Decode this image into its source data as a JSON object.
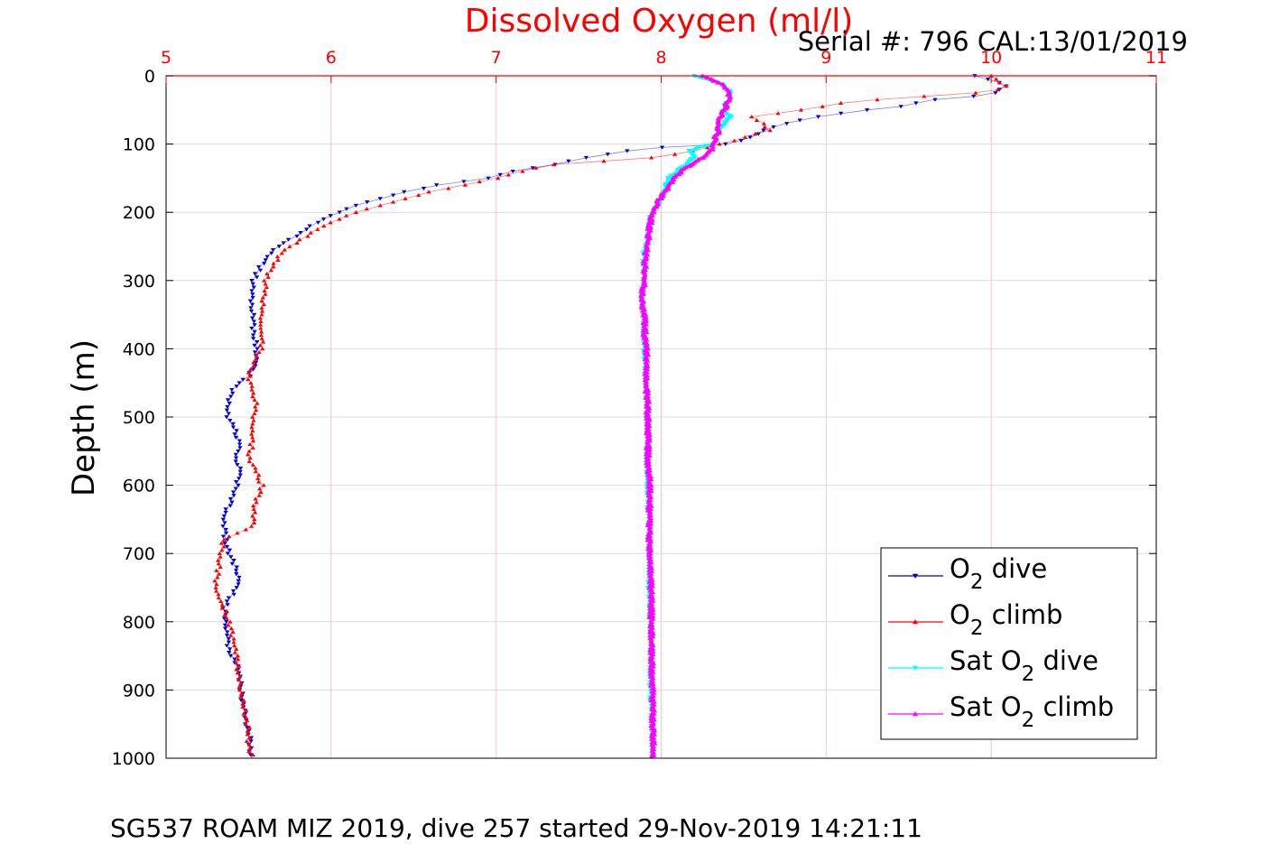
{
  "figure": {
    "footer": "SG537 ROAM MIZ 2019, dive 257 started 29-Nov-2019 14:21:11",
    "serial": "Serial #: 796  CAL:13/01/2019"
  },
  "colors": {
    "o2_dive": "#0000d0",
    "o2_climb": "#ff0000",
    "sat_dive": "#00ffff",
    "sat_climb": "#ff00ff",
    "title": "#ff0000",
    "top_ticks": "#ff0000",
    "grid": "#f5c6d3"
  },
  "chart_data": {
    "type": "line",
    "title": "Dissolved Oxygen (ml/l)",
    "xlabel": "",
    "ylabel": "Depth (m)",
    "xlim": [
      5,
      11
    ],
    "ylim": [
      0,
      1000
    ],
    "y_reversed": true,
    "x_axis_position": "top",
    "x_ticks": [
      "5",
      "6",
      "7",
      "8",
      "9",
      "10",
      "11"
    ],
    "y_ticks": [
      "0",
      "100",
      "200",
      "300",
      "400",
      "500",
      "600",
      "700",
      "800",
      "900",
      "1000"
    ],
    "grid": true,
    "legend_position": "bottom-right",
    "legend": [
      {
        "label": "O",
        "sub": "2",
        "suffix": " dive"
      },
      {
        "label": "O",
        "sub": "2",
        "suffix": " climb"
      },
      {
        "label": "Sat O",
        "sub": "2",
        "suffix": " dive"
      },
      {
        "label": "Sat O",
        "sub": "2",
        "suffix": " climb"
      }
    ],
    "series": [
      {
        "key": "o2_dive",
        "marker": "triangle-down",
        "depth": [
          0,
          10,
          15,
          20,
          25,
          30,
          35,
          45,
          50,
          60,
          70,
          80,
          90,
          100,
          105,
          110,
          120,
          130,
          140,
          150,
          160,
          170,
          180,
          190,
          200,
          210,
          220,
          230,
          240,
          250,
          260,
          270,
          280,
          290,
          300,
          320,
          340,
          360,
          380,
          400,
          420,
          440,
          460,
          480,
          500,
          520,
          540,
          560,
          580,
          600,
          620,
          640,
          660,
          680,
          700,
          720,
          740,
          760,
          780,
          800,
          820,
          840,
          860,
          880,
          900,
          920,
          940,
          960,
          980,
          1000
        ],
        "o2": [
          9.9,
          10.05,
          10.08,
          10.06,
          10.02,
          9.9,
          9.65,
          9.45,
          9.25,
          8.95,
          8.75,
          8.62,
          8.55,
          8.4,
          8.0,
          7.8,
          7.55,
          7.35,
          7.1,
          6.95,
          6.65,
          6.45,
          6.3,
          6.15,
          6.05,
          5.95,
          5.88,
          5.82,
          5.75,
          5.68,
          5.63,
          5.6,
          5.57,
          5.55,
          5.53,
          5.52,
          5.52,
          5.53,
          5.53,
          5.55,
          5.55,
          5.5,
          5.4,
          5.38,
          5.37,
          5.42,
          5.45,
          5.42,
          5.45,
          5.43,
          5.4,
          5.36,
          5.35,
          5.36,
          5.38,
          5.42,
          5.45,
          5.4,
          5.35,
          5.36,
          5.37,
          5.38,
          5.42,
          5.45,
          5.45,
          5.47,
          5.48,
          5.5,
          5.51,
          5.52
        ]
      },
      {
        "key": "o2_climb",
        "marker": "triangle-up",
        "depth": [
          0,
          10,
          15,
          20,
          25,
          30,
          35,
          40,
          50,
          55,
          60,
          70,
          80,
          90,
          95,
          100,
          110,
          120,
          130,
          140,
          150,
          160,
          170,
          180,
          190,
          200,
          210,
          220,
          230,
          240,
          250,
          260,
          270,
          280,
          290,
          300,
          320,
          340,
          360,
          380,
          400,
          420,
          440,
          460,
          480,
          500,
          520,
          540,
          560,
          580,
          600,
          620,
          640,
          660,
          680,
          700,
          720,
          740,
          760,
          780,
          800,
          820,
          840,
          860,
          880,
          900,
          920,
          940,
          960,
          980,
          1000
        ],
        "o2": [
          10.0,
          10.05,
          10.08,
          10.05,
          9.9,
          9.6,
          9.3,
          9.1,
          8.85,
          8.7,
          8.55,
          8.62,
          8.65,
          8.5,
          8.45,
          8.35,
          8.2,
          7.95,
          7.35,
          7.15,
          7.0,
          6.8,
          6.6,
          6.45,
          6.3,
          6.15,
          6.05,
          5.95,
          5.88,
          5.82,
          5.75,
          5.7,
          5.67,
          5.64,
          5.62,
          5.6,
          5.6,
          5.58,
          5.57,
          5.58,
          5.58,
          5.53,
          5.5,
          5.52,
          5.55,
          5.53,
          5.52,
          5.52,
          5.5,
          5.55,
          5.58,
          5.55,
          5.53,
          5.52,
          5.35,
          5.33,
          5.32,
          5.3,
          5.31,
          5.35,
          5.38,
          5.4,
          5.42,
          5.43,
          5.44,
          5.45,
          5.47,
          5.48,
          5.5,
          5.5,
          5.52
        ]
      },
      {
        "key": "sat_dive",
        "marker": "triangle-down",
        "depth": [
          0,
          5,
          10,
          15,
          20,
          30,
          40,
          50,
          60,
          70,
          80,
          90,
          100,
          105,
          110,
          120,
          130,
          140,
          150,
          160,
          170,
          180,
          190,
          200,
          220,
          240,
          260,
          280,
          300,
          320,
          340,
          360,
          380,
          400,
          450,
          500,
          550,
          600,
          650,
          700,
          750,
          800,
          850,
          900,
          950,
          1000
        ],
        "o2": [
          8.2,
          8.28,
          8.35,
          8.38,
          8.4,
          8.42,
          8.4,
          8.38,
          8.42,
          8.38,
          8.35,
          8.33,
          8.32,
          8.22,
          8.18,
          8.2,
          8.15,
          8.1,
          8.05,
          8.03,
          8.02,
          8.0,
          7.98,
          7.95,
          7.93,
          7.92,
          7.9,
          7.9,
          7.9,
          7.88,
          7.89,
          7.9,
          7.9,
          7.9,
          7.91,
          7.92,
          7.92,
          7.92,
          7.93,
          7.93,
          7.93,
          7.94,
          7.94,
          7.94,
          7.95,
          7.95
        ]
      },
      {
        "key": "sat_climb",
        "marker": "triangle-up",
        "depth": [
          0,
          5,
          10,
          15,
          20,
          25,
          30,
          40,
          50,
          60,
          70,
          80,
          90,
          100,
          110,
          120,
          130,
          140,
          150,
          160,
          170,
          180,
          190,
          200,
          220,
          240,
          260,
          280,
          300,
          320,
          340,
          360,
          380,
          400,
          450,
          500,
          550,
          600,
          650,
          700,
          750,
          800,
          850,
          900,
          950,
          1000
        ],
        "o2": [
          8.25,
          8.3,
          8.35,
          8.38,
          8.4,
          8.41,
          8.42,
          8.4,
          8.38,
          8.36,
          8.34,
          8.35,
          8.33,
          8.32,
          8.3,
          8.25,
          8.18,
          8.12,
          8.08,
          8.05,
          8.02,
          7.99,
          7.97,
          7.95,
          7.93,
          7.92,
          7.91,
          7.9,
          7.9,
          7.88,
          7.89,
          7.9,
          7.9,
          7.91,
          7.91,
          7.92,
          7.92,
          7.93,
          7.93,
          7.93,
          7.94,
          7.94,
          7.94,
          7.95,
          7.95,
          7.95
        ]
      }
    ]
  }
}
